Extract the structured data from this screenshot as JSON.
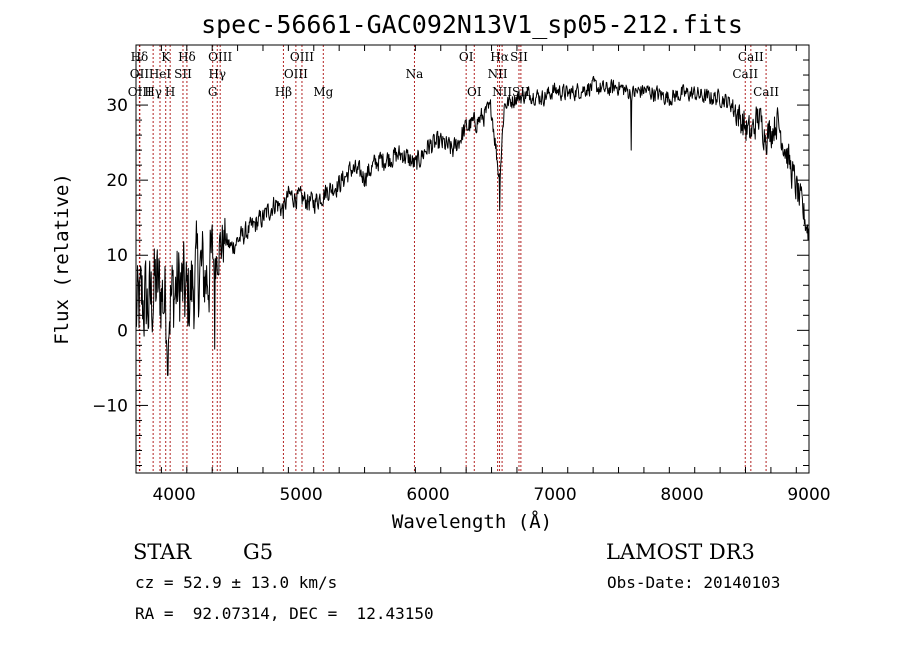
{
  "chart_data": {
    "type": "line",
    "title": "spec-56661-GAC092N13V1_sp05-212.fits",
    "xlabel": "Wavelength (Å)",
    "ylabel": "Flux (relative)",
    "xlim": [
      3700,
      9000
    ],
    "ylim": [
      -19,
      38
    ],
    "x_ticks": [
      4000,
      5000,
      6000,
      7000,
      8000,
      9000
    ],
    "y_ticks": [
      -10,
      0,
      10,
      20,
      30
    ],
    "grid": false,
    "spectrum_anchors": {
      "x": [
        3700,
        3750,
        3800,
        3850,
        3900,
        3950,
        4000,
        4050,
        4100,
        4150,
        4200,
        4250,
        4300,
        4350,
        4400,
        4450,
        4500,
        4600,
        4700,
        4800,
        4861,
        4900,
        5000,
        5100,
        5200,
        5300,
        5400,
        5500,
        5600,
        5700,
        5800,
        5900,
        6000,
        6100,
        6200,
        6300,
        6400,
        6500,
        6563,
        6600,
        6700,
        6800,
        6900,
        7000,
        7100,
        7200,
        7300,
        7400,
        7500,
        7600,
        7700,
        7800,
        7900,
        8000,
        8100,
        8200,
        8300,
        8400,
        8450,
        8500,
        8540,
        8600,
        8662,
        8700,
        8750,
        8800,
        8850,
        8900,
        8950,
        9000
      ],
      "y": [
        2,
        4,
        3,
        6,
        5,
        3,
        5,
        6,
        4,
        6,
        8,
        7,
        9,
        11,
        12,
        11,
        12,
        13.5,
        15,
        17,
        16,
        18,
        17.5,
        17,
        18.5,
        19.5,
        21.5,
        20.5,
        22.5,
        23,
        23.5,
        22,
        24.5,
        25,
        24,
        27,
        28,
        29.5,
        20,
        30,
        31,
        31.5,
        31,
        32,
        31.5,
        32,
        32.5,
        32,
        32.5,
        31.5,
        32,
        31.5,
        31,
        31.5,
        31.5,
        31,
        31,
        30,
        28.5,
        27,
        26,
        28.5,
        26,
        26.5,
        28,
        25,
        22,
        19,
        16,
        13
      ]
    },
    "spectrum_noise_by_region": {
      "x_ranges": [
        [
          3700,
          4300
        ],
        [
          4300,
          4400
        ],
        [
          4400,
          6600
        ],
        [
          6600,
          8400
        ],
        [
          8400,
          9000
        ]
      ],
      "amplitude": [
        6.5,
        3.5,
        1.4,
        1.1,
        2.2
      ]
    },
    "absorption_features": [
      {
        "x": 6563,
        "y": 16
      },
      {
        "x": 7600,
        "y": 24
      },
      {
        "x": 3950,
        "y": -6
      },
      {
        "x": 4320,
        "y": -2.5
      }
    ],
    "spectral_lines": [
      {
        "label": "Hδ",
        "x": 3727,
        "row": 0
      },
      {
        "label": "OII",
        "x": 3727,
        "row": 1
      },
      {
        "label": "OIII",
        "x": 3730,
        "row": 2
      },
      {
        "label": "K",
        "x": 3934,
        "row": 0
      },
      {
        "label": "Hδ",
        "x": 4101,
        "row": 0
      },
      {
        "label": "HeI",
        "x": 3889,
        "row": 1
      },
      {
        "label": "SII",
        "x": 4070,
        "row": 1
      },
      {
        "label": "Hγ",
        "x": 3835,
        "row": 2
      },
      {
        "label": "H",
        "x": 3969,
        "row": 2
      },
      {
        "label": "OIII",
        "x": 4363,
        "row": 0
      },
      {
        "label": "Hγ",
        "x": 4340,
        "row": 1
      },
      {
        "label": "G",
        "x": 4304,
        "row": 2
      },
      {
        "label": "OIII",
        "x": 5007,
        "row": 0
      },
      {
        "label": "OIII",
        "x": 4959,
        "row": 1
      },
      {
        "label": "Hβ",
        "x": 4861,
        "row": 2
      },
      {
        "label": "Mg",
        "x": 5175,
        "row": 2
      },
      {
        "label": "Na",
        "x": 5893,
        "row": 1
      },
      {
        "label": "OI",
        "x": 6300,
        "row": 0
      },
      {
        "label": "OI",
        "x": 6364,
        "row": 2
      },
      {
        "label": "Hα",
        "x": 6563,
        "row": 0
      },
      {
        "label": "SII",
        "x": 6716,
        "row": 0
      },
      {
        "label": "NII",
        "x": 6548,
        "row": 1
      },
      {
        "label": "NII",
        "x": 6583,
        "row": 2
      },
      {
        "label": "SII",
        "x": 6731,
        "row": 2
      },
      {
        "label": "CaII",
        "x": 8542,
        "row": 0
      },
      {
        "label": "CaII",
        "x": 8498,
        "row": 1
      },
      {
        "label": "CaII",
        "x": 8662,
        "row": 2
      }
    ],
    "line_marker_color": "#b22222"
  },
  "info": {
    "object_class": "STAR",
    "subclass": "G5",
    "survey": "LAMOST DR3",
    "redshift": "cz = 52.9 ± 13.0 km/s",
    "obs_date": "Obs-Date: 20140103",
    "coordinates": "RA =  92.07314, DEC =  12.43150"
  }
}
